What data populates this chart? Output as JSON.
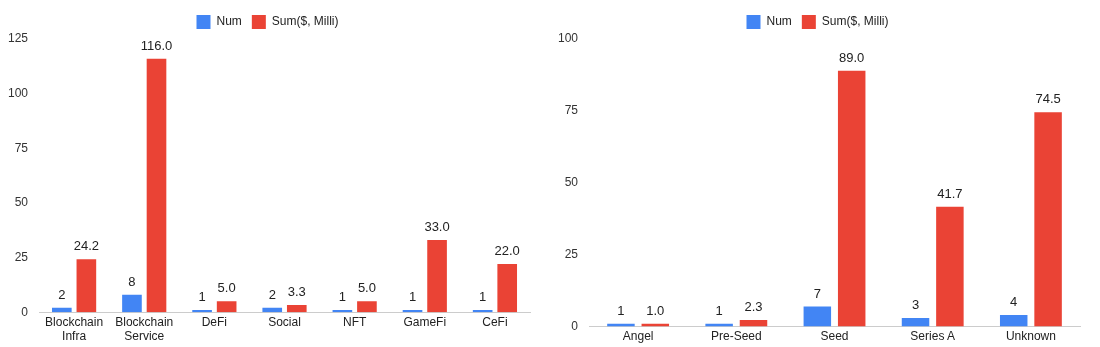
{
  "chart_data": [
    {
      "type": "bar",
      "categories": [
        "Blockchain\nInfra",
        "Blockchain\nService",
        "DeFi",
        "Social",
        "NFT",
        "GameFi",
        "CeFi"
      ],
      "series": [
        {
          "name": "Num",
          "color": "#4285f4",
          "values": [
            2,
            8,
            1,
            2,
            1,
            1,
            1
          ],
          "value_labels": [
            "2",
            "8",
            "1",
            "2",
            "1",
            "1",
            "1"
          ]
        },
        {
          "name": "Sum($, Milli)",
          "color": "#ea4335",
          "values": [
            24.2,
            116.0,
            5.0,
            3.3,
            5.0,
            33.0,
            22.0
          ],
          "value_labels": [
            "24.2",
            "116.0",
            "5.0",
            "3.3",
            "5.0",
            "33.0",
            "22.0"
          ]
        }
      ],
      "ylim": [
        0,
        125
      ],
      "yticks": [
        0,
        25,
        50,
        75,
        100,
        125
      ],
      "grid": false,
      "legend": "top"
    },
    {
      "type": "bar",
      "categories": [
        "Angel",
        "Pre-Seed",
        "Seed",
        "Series A",
        "Unknown"
      ],
      "series": [
        {
          "name": "Num",
          "color": "#4285f4",
          "values": [
            1,
            1,
            7,
            3,
            4
          ],
          "value_labels": [
            "1",
            "1",
            "7",
            "3",
            "4"
          ]
        },
        {
          "name": "Sum($, Milli)",
          "color": "#ea4335",
          "values": [
            1.0,
            2.3,
            89.0,
            41.7,
            74.5
          ],
          "value_labels": [
            "1.0",
            "2.3",
            "89.0",
            "41.7",
            "74.5"
          ]
        }
      ],
      "ylim": [
        0,
        100
      ],
      "yticks": [
        0,
        25,
        50,
        75,
        100
      ],
      "grid": false,
      "legend": "top"
    }
  ]
}
